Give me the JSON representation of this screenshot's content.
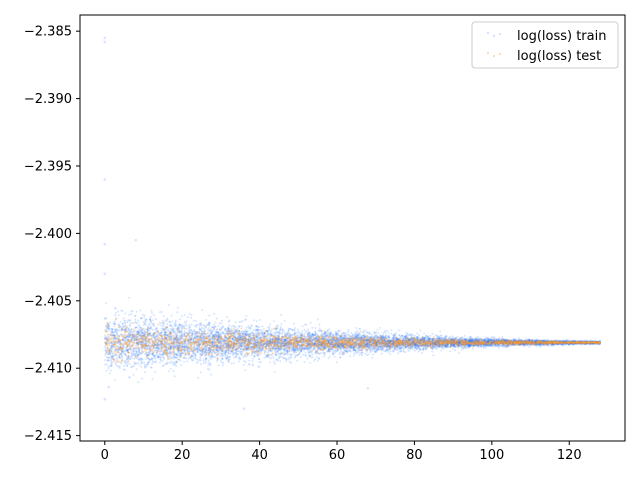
{
  "chart_data": {
    "type": "scatter",
    "title": "",
    "xlabel": "",
    "ylabel": "",
    "xlim": [
      -6.4,
      134.4
    ],
    "ylim": [
      -2.4154,
      -2.3838
    ],
    "x_ticks": [
      0,
      20,
      40,
      60,
      80,
      100,
      120
    ],
    "x_tick_labels": [
      "0",
      "20",
      "40",
      "60",
      "80",
      "100",
      "120"
    ],
    "y_ticks": [
      -2.385,
      -2.39,
      -2.395,
      -2.4,
      -2.405,
      -2.41,
      -2.415
    ],
    "y_tick_labels": [
      "−2.385",
      "−2.390",
      "−2.395",
      "−2.400",
      "−2.405",
      "−2.410",
      "−2.415"
    ],
    "grid": false,
    "legend": {
      "placement": "top-right"
    },
    "series": [
      {
        "name": "log(loss) train",
        "color": "#1f77ff",
        "marker_size": 1,
        "alpha": 0.18,
        "n_points": 9000,
        "x_range": [
          0,
          128
        ],
        "center": -2.4081,
        "spread_start": 0.0018,
        "spread_end": 0.0001,
        "outliers": [
          [
            0.0,
            -2.3855
          ],
          [
            0.0,
            -2.3858
          ],
          [
            0.0,
            -2.396
          ],
          [
            0.0,
            -2.4008
          ],
          [
            0.0,
            -2.403
          ],
          [
            0.0,
            -2.4123
          ],
          [
            1.0,
            -2.4114
          ],
          [
            8.0,
            -2.4005
          ],
          [
            36.0,
            -2.413
          ],
          [
            68.0,
            -2.4115
          ]
        ]
      },
      {
        "name": "log(loss) test",
        "color": "#ff9a2e",
        "marker_size": 1,
        "alpha": 0.3,
        "n_points": 2600,
        "x_range": [
          0,
          128
        ],
        "center": -2.4081,
        "spread_start": 0.0011,
        "spread_end": 6e-05,
        "outliers": []
      }
    ]
  }
}
